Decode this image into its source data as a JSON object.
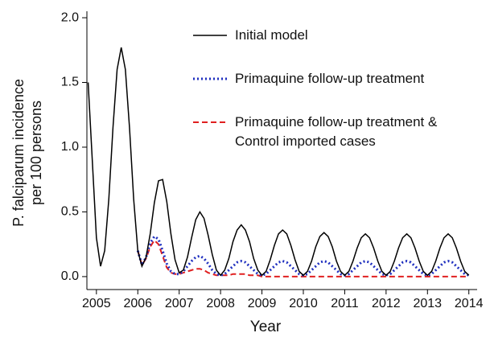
{
  "chart_data": {
    "type": "line",
    "xlabel": "Year",
    "ylabel": [
      "P. falciparum incidence",
      "per 100 persons"
    ],
    "x": [
      2004.8,
      2004.9,
      2005.0,
      2005.1,
      2005.2,
      2005.3,
      2005.4,
      2005.5,
      2005.6,
      2005.7,
      2005.8,
      2005.9,
      2006.0,
      2006.1,
      2006.2,
      2006.3,
      2006.4,
      2006.5,
      2006.6,
      2006.7,
      2006.8,
      2006.9,
      2007.0,
      2007.1,
      2007.2,
      2007.3,
      2007.4,
      2007.5,
      2007.6,
      2007.7,
      2007.8,
      2007.9,
      2008.0,
      2008.1,
      2008.2,
      2008.3,
      2008.4,
      2008.5,
      2008.6,
      2008.7,
      2008.8,
      2008.9,
      2009.0,
      2009.1,
      2009.2,
      2009.3,
      2009.4,
      2009.5,
      2009.6,
      2009.7,
      2009.8,
      2009.9,
      2010.0,
      2010.1,
      2010.2,
      2010.3,
      2010.4,
      2010.5,
      2010.6,
      2010.7,
      2010.8,
      2010.9,
      2011.0,
      2011.1,
      2011.2,
      2011.3,
      2011.4,
      2011.5,
      2011.6,
      2011.7,
      2011.8,
      2011.9,
      2012.0,
      2012.1,
      2012.2,
      2012.3,
      2012.4,
      2012.5,
      2012.6,
      2012.7,
      2012.8,
      2012.9,
      2013.0,
      2013.1,
      2013.2,
      2013.3,
      2013.4,
      2013.5,
      2013.6,
      2013.7,
      2013.8,
      2013.9,
      2014.0
    ],
    "series": [
      {
        "name": "Initial model",
        "color": "#000000",
        "style": "solid",
        "values": [
          1.5,
          0.9,
          0.3,
          0.08,
          0.2,
          0.6,
          1.15,
          1.6,
          1.77,
          1.6,
          1.15,
          0.6,
          0.2,
          0.08,
          0.15,
          0.33,
          0.57,
          0.74,
          0.75,
          0.58,
          0.33,
          0.13,
          0.03,
          0.05,
          0.15,
          0.3,
          0.44,
          0.5,
          0.45,
          0.32,
          0.17,
          0.05,
          0.01,
          0.05,
          0.14,
          0.27,
          0.36,
          0.4,
          0.36,
          0.27,
          0.14,
          0.05,
          0.01,
          0.04,
          0.13,
          0.24,
          0.33,
          0.36,
          0.33,
          0.24,
          0.13,
          0.04,
          0.01,
          0.04,
          0.12,
          0.23,
          0.31,
          0.34,
          0.31,
          0.23,
          0.12,
          0.04,
          0.01,
          0.04,
          0.12,
          0.22,
          0.3,
          0.33,
          0.3,
          0.22,
          0.12,
          0.04,
          0.01,
          0.04,
          0.12,
          0.22,
          0.3,
          0.33,
          0.3,
          0.22,
          0.12,
          0.04,
          0.01,
          0.04,
          0.12,
          0.22,
          0.3,
          0.33,
          0.3,
          0.22,
          0.12,
          0.04,
          0.01
        ]
      },
      {
        "name": "Primaquine follow-up treatment",
        "color": "#1f2fbf",
        "style": "dotted",
        "values": [
          null,
          null,
          null,
          null,
          null,
          null,
          null,
          null,
          null,
          null,
          null,
          null,
          0.2,
          0.09,
          0.15,
          0.26,
          0.31,
          0.29,
          0.2,
          0.1,
          0.04,
          0.02,
          0.02,
          0.04,
          0.08,
          0.12,
          0.15,
          0.16,
          0.14,
          0.1,
          0.05,
          0.02,
          0.01,
          0.02,
          0.05,
          0.08,
          0.11,
          0.12,
          0.11,
          0.08,
          0.05,
          0.02,
          0.01,
          0.02,
          0.05,
          0.08,
          0.11,
          0.12,
          0.11,
          0.08,
          0.05,
          0.02,
          0.01,
          0.02,
          0.05,
          0.08,
          0.11,
          0.12,
          0.11,
          0.08,
          0.05,
          0.02,
          0.01,
          0.02,
          0.05,
          0.08,
          0.11,
          0.12,
          0.11,
          0.08,
          0.05,
          0.02,
          0.01,
          0.02,
          0.05,
          0.08,
          0.11,
          0.12,
          0.11,
          0.08,
          0.05,
          0.02,
          0.01,
          0.02,
          0.05,
          0.08,
          0.11,
          0.12,
          0.11,
          0.08,
          0.05,
          0.02,
          0.01
        ]
      },
      {
        "name": "Primaquine follow-up treatment & Control imported cases",
        "color": "#e02020",
        "style": "dashed",
        "values": [
          null,
          null,
          null,
          null,
          null,
          null,
          null,
          null,
          null,
          null,
          null,
          null,
          0.2,
          0.09,
          0.14,
          0.23,
          0.28,
          0.25,
          0.16,
          0.07,
          0.03,
          0.02,
          0.02,
          0.03,
          0.04,
          0.05,
          0.06,
          0.06,
          0.05,
          0.03,
          0.02,
          0.01,
          0.01,
          0.01,
          0.01,
          0.02,
          0.02,
          0.02,
          0.02,
          0.01,
          0.01,
          0.01,
          0,
          0,
          0,
          0,
          0,
          0,
          0,
          0,
          0,
          0,
          0,
          0,
          0,
          0,
          0,
          0,
          0,
          0,
          0,
          0,
          0,
          0,
          0,
          0,
          0,
          0,
          0,
          0,
          0,
          0,
          0,
          0,
          0,
          0,
          0,
          0,
          0,
          0,
          0,
          0,
          0,
          0,
          0,
          0,
          0,
          0,
          0,
          0,
          0,
          0,
          0
        ]
      }
    ],
    "xlim": [
      2004.77,
      2014.2
    ],
    "ylim": [
      -0.1,
      2.05
    ],
    "xticks": [
      2005,
      2006,
      2007,
      2008,
      2009,
      2010,
      2011,
      2012,
      2013,
      2014
    ],
    "yticks": [
      {
        "value": 0,
        "label": "0.0"
      },
      {
        "value": 0.5,
        "label": "0.5"
      },
      {
        "value": 1,
        "label": "1.0"
      },
      {
        "value": 1.5,
        "label": "1.5"
      },
      {
        "value": 2,
        "label": "2.0"
      }
    ],
    "grid": false,
    "legend": "upper right"
  }
}
